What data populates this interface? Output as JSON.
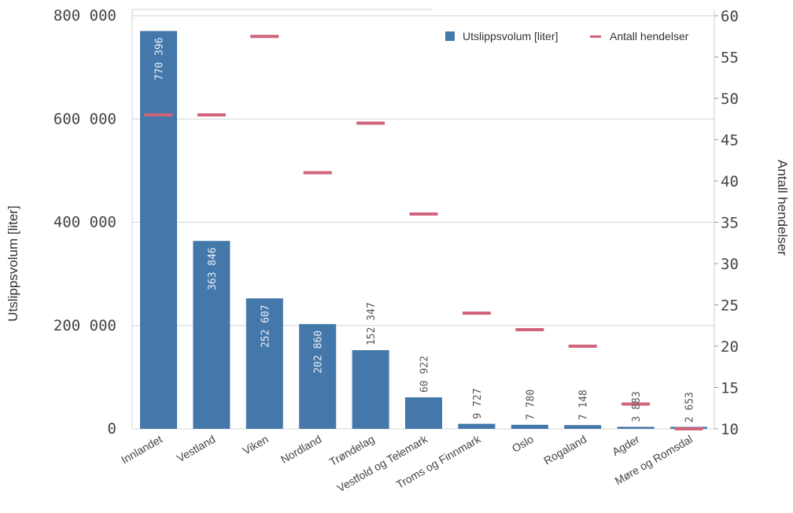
{
  "chart_data": {
    "type": "bar",
    "categories": [
      "Innlandet",
      "Vestland",
      "Viken",
      "Nordland",
      "Trøndelag",
      "Vestfold og Telemark",
      "Troms og Finnmark",
      "Oslo",
      "Rogaland",
      "Agder",
      "Møre og Romsdal"
    ],
    "series": [
      {
        "name": "Utslippsvolum [liter]",
        "axis": "left",
        "values": [
          770396,
          363846,
          252607,
          202860,
          152347,
          60922,
          9727,
          7780,
          7148,
          3883,
          2653
        ],
        "labels": [
          "770 396",
          "363 846",
          "252 607",
          "202 860",
          "152 347",
          "60 922",
          "9 727",
          "7 780",
          "7 148",
          "3 883",
          "2 653"
        ],
        "color": "#4477aa"
      },
      {
        "name": "Antall hendelser",
        "axis": "right",
        "values": [
          48,
          48,
          57.5,
          41,
          47,
          36,
          24,
          22,
          20,
          13,
          10
        ],
        "color": "#d0647a"
      }
    ],
    "y_left": {
      "title": "Utslippsvolum [liter]",
      "lim": [
        0,
        800000
      ],
      "ticks": [
        0,
        200000,
        400000,
        600000,
        800000
      ],
      "tick_labels": [
        "0",
        "200 000",
        "400 000",
        "600 000",
        "800 000"
      ]
    },
    "y_right": {
      "title": "Antall hendelser",
      "lim": [
        10,
        60
      ],
      "ticks": [
        10,
        15,
        20,
        25,
        30,
        35,
        40,
        45,
        50,
        55,
        60
      ],
      "tick_labels": [
        "10",
        "15",
        "20",
        "25",
        "30",
        "35",
        "40",
        "45",
        "50",
        "55",
        "60"
      ]
    },
    "grid": true,
    "legend_position": "top-right"
  },
  "colors": {
    "bar": "#4477aa",
    "marker": "#d0647a",
    "grid": "#d4d4d4"
  }
}
